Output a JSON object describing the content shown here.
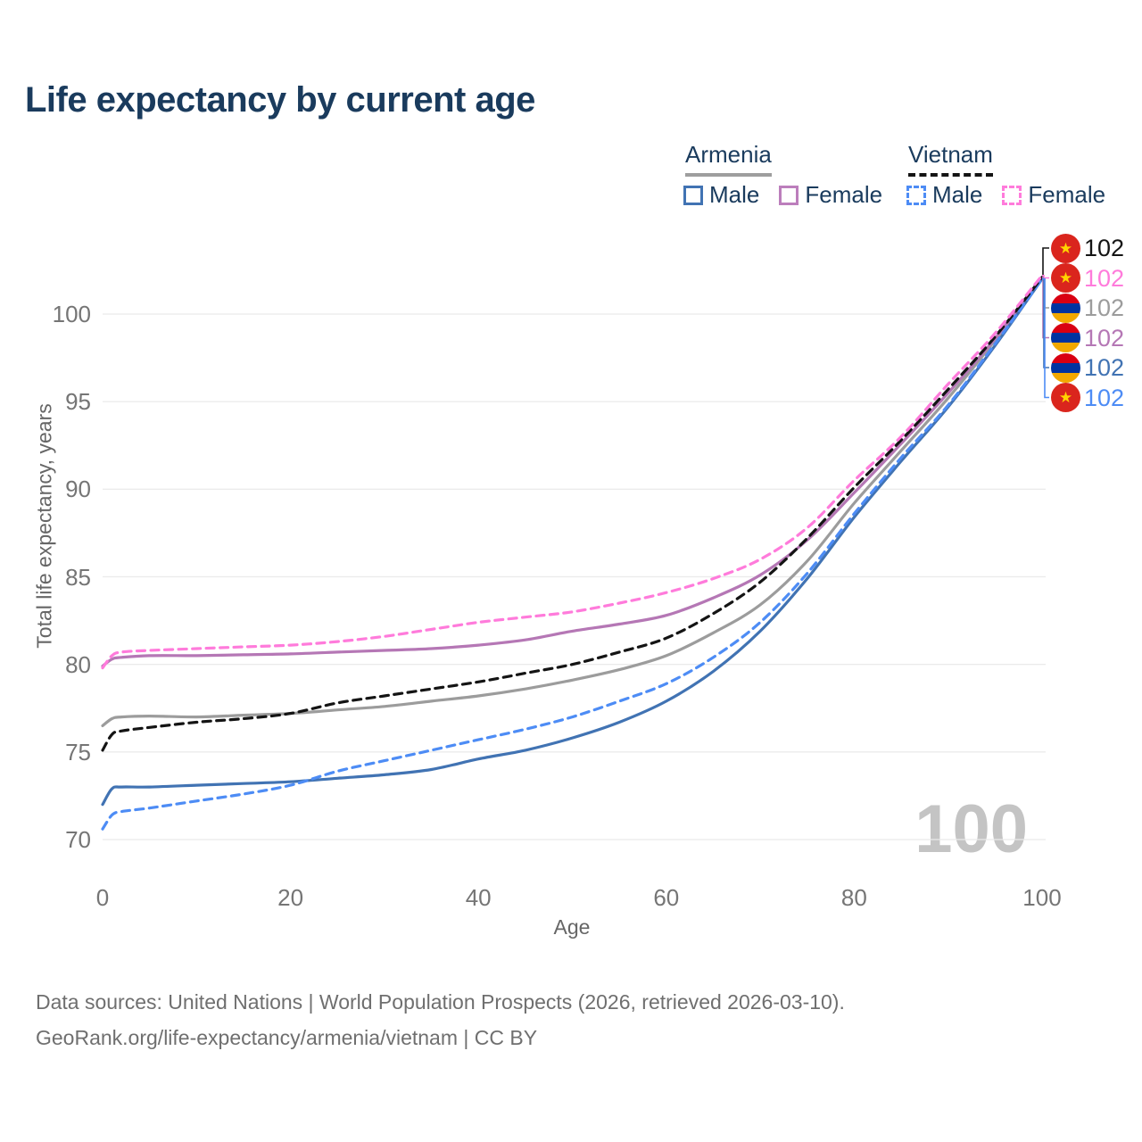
{
  "title": "Life expectancy by current age",
  "legend": {
    "groups": [
      {
        "label": "Armenia",
        "line_style": "solid",
        "underline_color": "#9e9e9e",
        "items": [
          {
            "label": "Male",
            "color": "#4173b3",
            "dashed": false
          },
          {
            "label": "Female",
            "color": "#bc7ebc",
            "dashed": false
          }
        ]
      },
      {
        "label": "Vietnam",
        "line_style": "dashed",
        "underline_color": "#141414",
        "items": [
          {
            "label": "Male",
            "color": "#4d8cf5",
            "dashed": true
          },
          {
            "label": "Female",
            "color": "#ff7bdb",
            "dashed": true
          }
        ]
      }
    ]
  },
  "axes": {
    "y_title": "Total life expectancy, years",
    "x_title": "Age"
  },
  "watermark": "100",
  "star_glyph": "★",
  "flag_colors": {
    "vietnam_red": "#da251d",
    "vietnam_star": "#ffd400",
    "armenia_red": "#d90012",
    "armenia_blue": "#0033a0",
    "armenia_orange": "#f2a800"
  },
  "footer": {
    "line1": "Data sources: United Nations | World Population Prospects (2026, retrieved 2026-03-10).",
    "line2": "GeoRank.org/life-expectancy/armenia/vietnam | CC BY"
  },
  "chart_data": {
    "type": "line",
    "title": "Life expectancy by current age",
    "xlabel": "Age",
    "ylabel": "Total life expectancy, years",
    "xlim": [
      0,
      100
    ],
    "ylim": [
      69,
      102.5
    ],
    "x_ticks": [
      0,
      20,
      40,
      60,
      80,
      100
    ],
    "y_ticks": [
      70,
      75,
      80,
      85,
      90,
      95,
      100
    ],
    "grid": "horizontal",
    "legend_position": "top-right",
    "ages": [
      0,
      1,
      2,
      5,
      10,
      15,
      20,
      25,
      30,
      35,
      40,
      45,
      50,
      55,
      60,
      65,
      70,
      75,
      80,
      85,
      90,
      95,
      100
    ],
    "series": [
      {
        "name": "Armenia",
        "country": "Armenia",
        "sex": "both",
        "color": "#9c9c9c",
        "dashed": false,
        "values": [
          76.5,
          76.9,
          77.0,
          77.05,
          77.0,
          77.1,
          77.2,
          77.4,
          77.6,
          77.9,
          78.2,
          78.6,
          79.1,
          79.7,
          80.5,
          81.8,
          83.4,
          85.9,
          89.2,
          92.2,
          95.2,
          98.5,
          102.0
        ]
      },
      {
        "name": "Armenia Female",
        "country": "Armenia",
        "sex": "female",
        "color": "#b577b5",
        "dashed": false,
        "values": [
          79.9,
          80.3,
          80.4,
          80.5,
          80.5,
          80.55,
          80.6,
          80.7,
          80.8,
          80.9,
          81.1,
          81.4,
          81.9,
          82.3,
          82.8,
          83.8,
          85.1,
          87.1,
          89.8,
          92.6,
          95.5,
          98.6,
          102.1
        ]
      },
      {
        "name": "Armenia Male",
        "country": "Armenia",
        "sex": "male",
        "color": "#4173b3",
        "dashed": false,
        "values": [
          72.0,
          72.9,
          73.0,
          73.0,
          73.1,
          73.2,
          73.3,
          73.5,
          73.7,
          74.0,
          74.6,
          75.1,
          75.8,
          76.7,
          77.9,
          79.6,
          81.9,
          84.9,
          88.4,
          91.6,
          94.7,
          98.2,
          102.0
        ]
      },
      {
        "name": "Vietnam Male",
        "country": "Vietnam",
        "sex": "male",
        "color": "#4d8cf5",
        "dashed": true,
        "values": [
          70.6,
          71.4,
          71.6,
          71.8,
          72.2,
          72.6,
          73.1,
          73.9,
          74.5,
          75.1,
          75.7,
          76.3,
          77.0,
          77.9,
          78.9,
          80.4,
          82.4,
          85.2,
          88.6,
          91.8,
          94.8,
          98.3,
          102.0
        ]
      },
      {
        "name": "Vietnam",
        "country": "Vietnam",
        "sex": "both",
        "color": "#141414",
        "dashed": true,
        "values": [
          75.1,
          76.0,
          76.2,
          76.4,
          76.7,
          76.9,
          77.2,
          77.8,
          78.2,
          78.6,
          79.0,
          79.5,
          80.0,
          80.7,
          81.5,
          82.9,
          84.7,
          87.2,
          90.1,
          92.8,
          95.7,
          98.7,
          102.1
        ]
      },
      {
        "name": "Vietnam Female",
        "country": "Vietnam",
        "sex": "female",
        "color": "#ff7bdb",
        "dashed": true,
        "values": [
          79.8,
          80.5,
          80.7,
          80.8,
          80.9,
          81.0,
          81.1,
          81.3,
          81.6,
          82.0,
          82.4,
          82.7,
          83.0,
          83.5,
          84.1,
          84.9,
          86.0,
          87.8,
          90.5,
          93.0,
          96.0,
          98.9,
          102.2
        ]
      }
    ],
    "end_labels": [
      {
        "series": "Vietnam",
        "flag": "vietnam",
        "value": "102",
        "color": "#141414"
      },
      {
        "series": "Vietnam Female",
        "flag": "vietnam",
        "value": "102",
        "color": "#ff7bdb"
      },
      {
        "series": "Armenia",
        "flag": "armenia",
        "value": "102",
        "color": "#9c9c9c"
      },
      {
        "series": "Armenia Female",
        "flag": "armenia",
        "value": "102",
        "color": "#b577b5"
      },
      {
        "series": "Armenia Male",
        "flag": "armenia",
        "value": "102",
        "color": "#4173b3"
      },
      {
        "series": "Vietnam Male",
        "flag": "vietnam",
        "value": "102",
        "color": "#4d8cf5"
      }
    ]
  }
}
